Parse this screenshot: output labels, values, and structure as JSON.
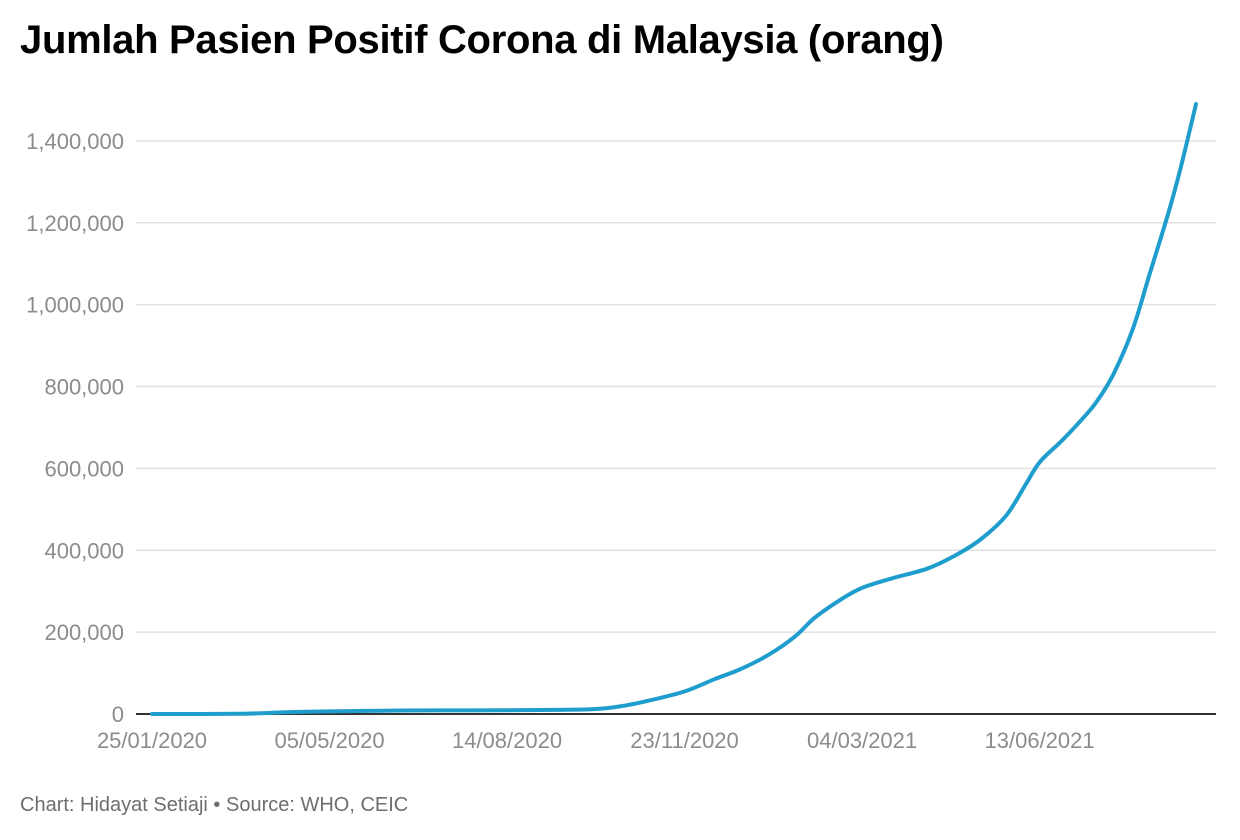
{
  "chart_data": {
    "type": "line",
    "title": "Jumlah Pasien Positif Corona di Malaysia (orang)",
    "xlabel": "",
    "ylabel": "",
    "x_ticks": [
      "25/01/2020",
      "05/05/2020",
      "14/08/2020",
      "23/11/2020",
      "04/03/2021",
      "13/06/2021"
    ],
    "x_range": [
      "2020-01-25",
      "2021-08-15"
    ],
    "ylim": [
      0,
      1500000
    ],
    "y_ticks": [
      0,
      200000,
      400000,
      600000,
      800000,
      1000000,
      1200000,
      1400000
    ],
    "y_tick_labels": [
      "0",
      "200,000",
      "400,000",
      "600,000",
      "800,000",
      "1,000,000",
      "1,200,000",
      "1,400,000"
    ],
    "grid": "horizontal",
    "legend": "none",
    "series": [
      {
        "color": "#1f9ece",
        "points": [
          [
            "2020-01-25",
            0
          ],
          [
            "2020-03-15",
            500
          ],
          [
            "2020-04-10",
            4300
          ],
          [
            "2020-05-05",
            6300
          ],
          [
            "2020-06-15",
            8500
          ],
          [
            "2020-07-15",
            8800
          ],
          [
            "2020-08-14",
            9200
          ],
          [
            "2020-09-10",
            10000
          ],
          [
            "2020-10-01",
            11500
          ],
          [
            "2020-10-15",
            17000
          ],
          [
            "2020-10-31",
            30000
          ],
          [
            "2020-11-23",
            55000
          ],
          [
            "2020-12-10",
            85000
          ],
          [
            "2020-12-25",
            110000
          ],
          [
            "2021-01-10",
            145000
          ],
          [
            "2021-01-25",
            190000
          ],
          [
            "2021-02-05",
            235000
          ],
          [
            "2021-02-20",
            280000
          ],
          [
            "2021-03-04",
            308000
          ],
          [
            "2021-03-20",
            330000
          ],
          [
            "2021-04-10",
            355000
          ],
          [
            "2021-04-25",
            385000
          ],
          [
            "2021-05-10",
            425000
          ],
          [
            "2021-05-25",
            485000
          ],
          [
            "2021-06-05",
            560000
          ],
          [
            "2021-06-13",
            615000
          ],
          [
            "2021-06-25",
            665000
          ],
          [
            "2021-07-05",
            710000
          ],
          [
            "2021-07-15",
            760000
          ],
          [
            "2021-07-25",
            830000
          ],
          [
            "2021-08-05",
            940000
          ],
          [
            "2021-08-15",
            1080000
          ],
          [
            "2021-08-25",
            1220000
          ],
          [
            "2021-09-01",
            1330000
          ],
          [
            "2021-09-10",
            1490000
          ]
        ]
      }
    ],
    "footer": "Chart: Hidayat Setiaji • Source: WHO, CEIC",
    "colors": {
      "line": "#1f9ece",
      "grid": "#e0e0e0",
      "axis": "#333333",
      "tick_text": "#8c8c8c",
      "footer_text": "#6e6e6e"
    }
  }
}
